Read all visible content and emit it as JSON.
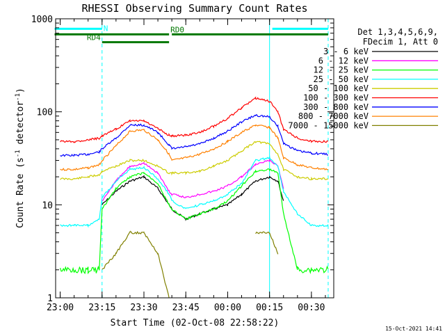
{
  "chart_data": {
    "type": "line",
    "title": "RHESSI Observing Summary Count Rates",
    "xlabel": "Start Time (02-Oct-08 22:58:22)",
    "ylabel_main": "Count Rate (s",
    "ylabel_sup": "-1",
    "ylabel_tail": " detector",
    "ylabel_sup2": "-1",
    "ylabel_close": ")",
    "y_scale": "log",
    "ylim": [
      1,
      1000
    ],
    "xlim": [
      "22:58:22",
      "00:38:00"
    ],
    "y_ticks": [
      {
        "value": 1,
        "label": "1"
      },
      {
        "value": 10,
        "label": "10"
      },
      {
        "value": 100,
        "label": "100"
      },
      {
        "value": 1000,
        "label": "1000"
      }
    ],
    "x_ticks": [
      "23:00",
      "23:15",
      "23:30",
      "23:45",
      "00:00",
      "00:15",
      "00:30"
    ],
    "legend_placement": "right",
    "legend_header": [
      "Det 1,3,4,5,6,9,",
      "FDecim 1, Att 0"
    ],
    "footer_date": "15-Oct-2021 14:41",
    "flags": [
      {
        "label": "N",
        "color": "#00ffff",
        "segments": [
          [
            "22:58",
            "23:15"
          ],
          [
            "00:16",
            "00:36"
          ]
        ],
        "level": 780
      },
      {
        "label": "RD0",
        "color": "#007700",
        "segments": [
          [
            "22:58",
            "23:39"
          ],
          [
            "23:40",
            "00:36"
          ]
        ],
        "level": 680
      },
      {
        "label": "RD4",
        "color": "#007700",
        "segments": [
          [
            "23:15",
            "23:39"
          ]
        ],
        "level": 560
      }
    ],
    "night_markers": [
      {
        "time": "23:15",
        "style": "dashed"
      },
      {
        "time": "00:15",
        "style": "solid"
      },
      {
        "time": "00:36",
        "style": "dashed"
      }
    ],
    "x_axis_times": [
      "23:00",
      "23:05",
      "23:10",
      "23:14",
      "23:15",
      "23:20",
      "23:25",
      "23:30",
      "23:35",
      "23:39",
      "23:40",
      "23:45",
      "23:50",
      "23:55",
      "00:00",
      "00:05",
      "00:10",
      "00:15",
      "00:18",
      "00:20",
      "00:25",
      "00:30",
      "00:36"
    ],
    "series": [
      {
        "name": "3 - 6 keV",
        "color": "#000000",
        "values": [
          null,
          null,
          null,
          null,
          10,
          14,
          18,
          20,
          15,
          10,
          9,
          7,
          8,
          9,
          10,
          13,
          18,
          20,
          18,
          11,
          null,
          null,
          null
        ]
      },
      {
        "name": "6 - 12 keV",
        "color": "#ff00ff",
        "values": [
          null,
          null,
          null,
          null,
          11,
          18,
          26,
          28,
          22,
          14,
          13,
          12,
          13,
          14,
          16,
          20,
          27,
          30,
          26,
          15,
          null,
          null,
          null
        ]
      },
      {
        "name": "12 - 25 keV",
        "color": "#00ff00",
        "values": [
          2,
          2,
          2,
          2,
          9,
          15,
          20,
          22,
          17,
          10,
          9,
          7,
          8,
          9,
          11,
          16,
          23,
          24,
          22,
          8,
          2,
          2,
          2
        ]
      },
      {
        "name": "25 - 50 keV",
        "color": "#00ffff",
        "values": [
          6,
          6,
          6,
          7,
          12,
          18,
          24,
          25,
          19,
          13,
          11,
          9,
          10,
          11,
          13,
          17,
          30,
          32,
          26,
          14,
          8,
          6,
          6
        ]
      },
      {
        "name": "50 - 100 keV",
        "color": "#cccc00",
        "values": [
          19,
          19,
          20,
          21,
          23,
          26,
          30,
          30,
          26,
          22,
          22,
          22,
          23,
          26,
          30,
          38,
          48,
          45,
          35,
          24,
          20,
          19,
          19
        ]
      },
      {
        "name": "100 - 300 keV",
        "color": "#ff0000",
        "values": [
          48,
          48,
          50,
          52,
          55,
          65,
          80,
          80,
          66,
          56,
          55,
          56,
          60,
          70,
          85,
          110,
          140,
          130,
          100,
          65,
          52,
          48,
          48
        ]
      },
      {
        "name": "300 - 800 keV",
        "color": "#0000ff",
        "values": [
          34,
          34,
          35,
          37,
          40,
          52,
          72,
          72,
          60,
          44,
          40,
          42,
          45,
          52,
          62,
          78,
          92,
          88,
          70,
          46,
          38,
          36,
          35
        ]
      },
      {
        "name": "800 - 7000 keV",
        "color": "#ff8000",
        "values": [
          24,
          24,
          25,
          27,
          30,
          43,
          62,
          64,
          50,
          35,
          30,
          32,
          35,
          40,
          48,
          60,
          72,
          68,
          52,
          32,
          27,
          25,
          24
        ]
      },
      {
        "name": "7000 - 15000 keV",
        "color": "#808000",
        "values": [
          null,
          null,
          null,
          null,
          2,
          3,
          5,
          5,
          3,
          1,
          null,
          null,
          null,
          null,
          null,
          null,
          5,
          5,
          3,
          null,
          null,
          null,
          null
        ]
      }
    ]
  }
}
